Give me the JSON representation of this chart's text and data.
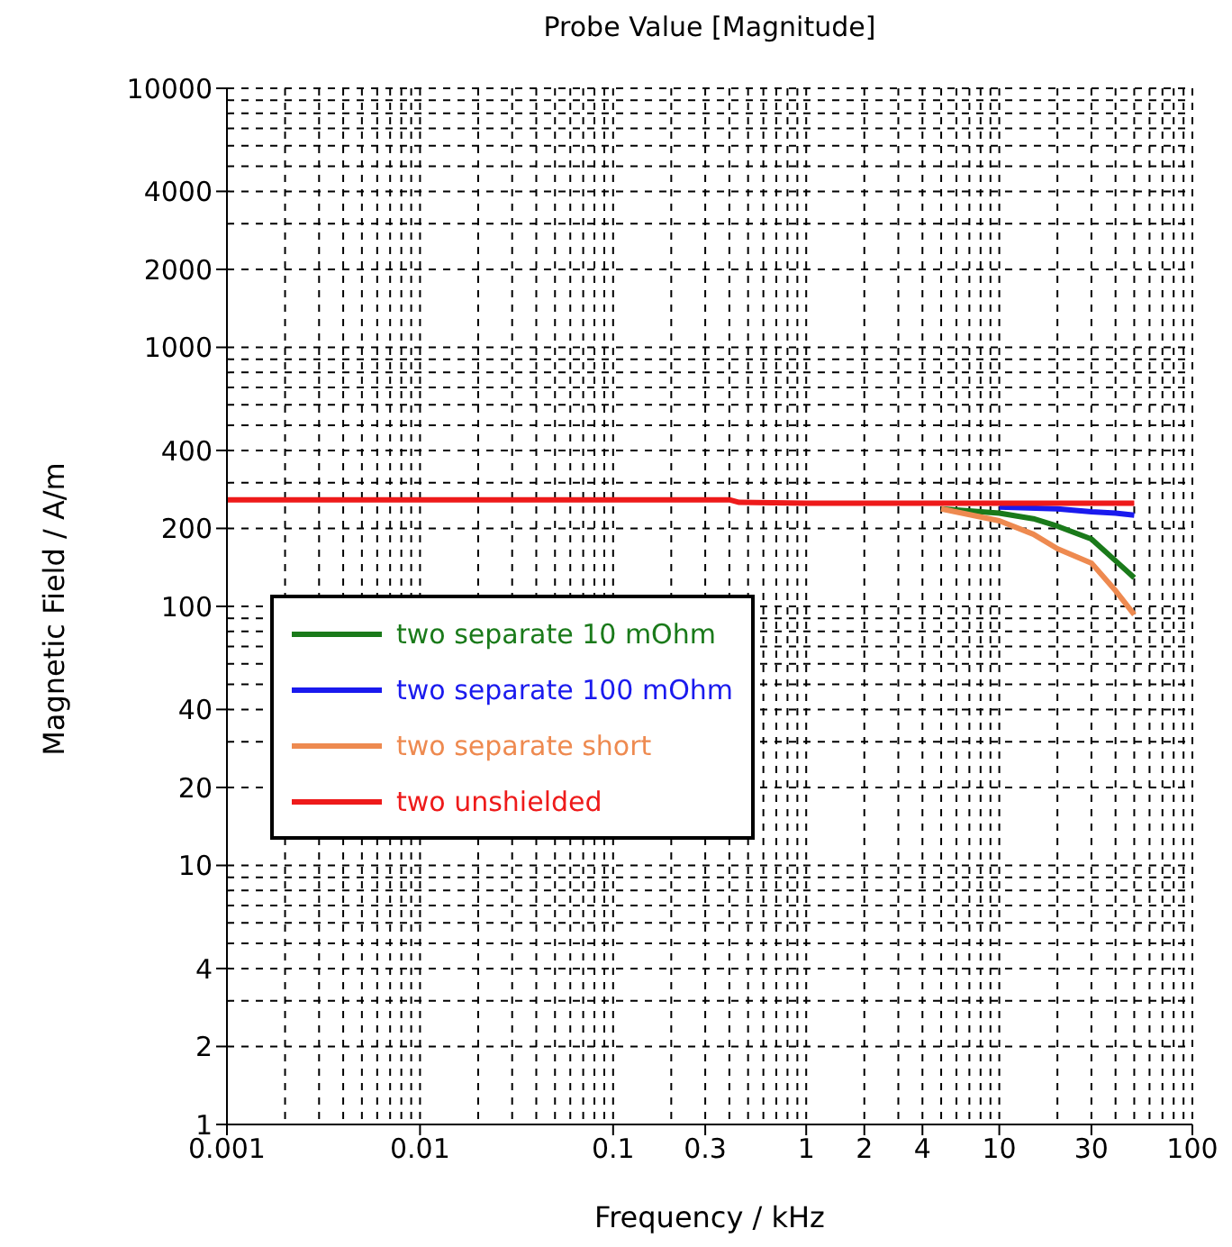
{
  "chart_data": {
    "type": "line",
    "title": "Probe Value [Magnitude]",
    "xlabel": "Frequency / kHz",
    "ylabel": "Magnetic Field / A/m",
    "log": "xy",
    "grid": true,
    "legend": "left",
    "xlim": [
      0.001,
      100
    ],
    "ylim": [
      1,
      10000
    ],
    "xticks": [
      0.001,
      0.01,
      0.1,
      0.3,
      1,
      2,
      4,
      10,
      30,
      100
    ],
    "yticks": [
      1,
      2,
      4,
      10,
      20,
      40,
      100,
      200,
      400,
      1000,
      2000,
      4000,
      10000
    ],
    "series": [
      {
        "name": "two separate 10 mOhm",
        "color": "#1a7a1a",
        "x": [
          5,
          10,
          15,
          20,
          30,
          40,
          50
        ],
        "values": [
          238,
          229,
          218,
          204,
          182,
          150,
          129
        ]
      },
      {
        "name": "two separate 100 mOhm",
        "color": "#1a1aee",
        "x": [
          10,
          20,
          30,
          40,
          50
        ],
        "values": [
          242,
          238,
          232,
          229,
          225
        ]
      },
      {
        "name": "two separate short",
        "color": "#ee8a50",
        "x": [
          5,
          10,
          15,
          20,
          30,
          40,
          50
        ],
        "values": [
          238,
          214,
          190,
          167,
          147,
          115,
          93
        ]
      },
      {
        "name": "two unshielded",
        "color": "#ee1a1a",
        "x": [
          0.001,
          0.4,
          0.45,
          1,
          10,
          50
        ],
        "values": [
          258,
          258,
          252,
          250,
          250,
          250
        ]
      }
    ]
  }
}
